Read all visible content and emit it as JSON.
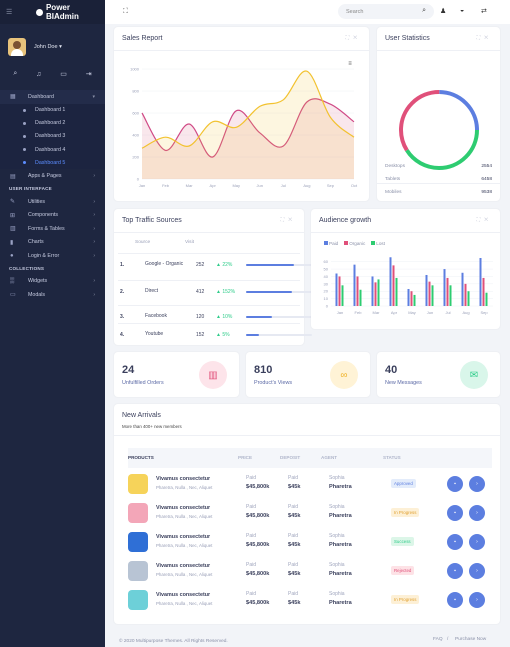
{
  "brand": {
    "name": "Power BIAdmin"
  },
  "user": {
    "name": "John Doe"
  },
  "sidebar": {
    "dashboard": "Dashboard",
    "sub": [
      "Dashboard 1",
      "Dashboard 2",
      "Dashboard 3",
      "Dashboard 4",
      "Dashboard 5"
    ],
    "apps": "Apps & Pages",
    "section_ui": "USER INTERFACE",
    "ui_items": [
      "Utilities",
      "Components",
      "Forms & Tables",
      "Charts",
      "Login & Error"
    ],
    "section_collections": "COLLECTIONS",
    "collection_items": [
      "Widgets",
      "Modals"
    ]
  },
  "search": {
    "placeholder": "Search"
  },
  "sales": {
    "title": "Sales Report",
    "yticks": [
      "1000",
      "800",
      "600",
      "400",
      "200",
      "0"
    ],
    "months": [
      "Jan",
      "Feb",
      "Mar",
      "Apr",
      "May",
      "Jun",
      "Jul",
      "Aug",
      "Sep",
      "Oct"
    ]
  },
  "user_stats": {
    "title": "User Statistics",
    "rows": [
      {
        "k": "Desktops",
        "v": "2554"
      },
      {
        "k": "Tablets",
        "v": "6458"
      },
      {
        "k": "Mobiles",
        "v": "9538"
      }
    ],
    "colors": {
      "desktops": "#5c7ee0",
      "tablets": "#2ecc71",
      "mobiles": "#e0507a"
    },
    "shares": [
      0.25,
      0.41,
      0.34
    ]
  },
  "traffic": {
    "title": "Top Traffic Sources",
    "col_source": "Source",
    "col_visit": "Visit",
    "rows": [
      {
        "n": "1.",
        "src": "Google - Organic",
        "v": "252",
        "p": "▲ 22%",
        "f": 0.72
      },
      {
        "n": "2.",
        "src": "Direct",
        "v": "412",
        "p": "▲ 152%",
        "f": 0.7
      },
      {
        "n": "3.",
        "src": "Facebook",
        "v": "120",
        "p": "▲ 10%",
        "f": 0.4
      },
      {
        "n": "4.",
        "src": "Youtube",
        "v": "152",
        "p": "▲ 5%",
        "f": 0.2
      }
    ]
  },
  "audience": {
    "title": "Audience growth",
    "legend": [
      "Paid",
      "Organic",
      "Lost"
    ]
  },
  "chart_data": [
    {
      "type": "area",
      "categories": [
        "Jan",
        "Feb",
        "Mar",
        "Apr",
        "May",
        "Jun",
        "Jul",
        "Aug",
        "Sep",
        "Oct"
      ],
      "series": [
        {
          "values": [
            600,
            260,
            500,
            200,
            620,
            420,
            300,
            700,
            680,
            520
          ]
        },
        {
          "values": [
            280,
            380,
            300,
            520,
            470,
            660,
            720,
            980,
            560,
            380
          ]
        }
      ],
      "title": "Sales Report",
      "ylim": [
        0,
        1000
      ]
    },
    {
      "type": "bar",
      "categories": [
        "Jan",
        "Feb",
        "Mar",
        "Apr",
        "May",
        "Jun",
        "Jul",
        "Aug",
        "Sep"
      ],
      "series": [
        {
          "name": "Paid",
          "values": [
            44,
            56,
            40,
            66,
            23,
            42,
            50,
            45,
            65
          ]
        },
        {
          "name": "Organic",
          "values": [
            40,
            40,
            32,
            55,
            20,
            33,
            38,
            30,
            38
          ]
        },
        {
          "name": "Lost",
          "values": [
            28,
            22,
            36,
            38,
            15,
            28,
            28,
            20,
            18
          ]
        }
      ],
      "title": "Audience growth",
      "yticks": [
        "60",
        "50",
        "40",
        "30",
        "20",
        "10",
        "0"
      ],
      "ylim": [
        0,
        65
      ]
    }
  ],
  "stats": [
    {
      "num": "24",
      "label": "Unfulfilled Orders"
    },
    {
      "num": "810",
      "label": "Product's Views"
    },
    {
      "num": "40",
      "label": "New Messages"
    }
  ],
  "arrivals": {
    "title": "New Arrivals",
    "subtitle": "More than 400+ new members",
    "headers": [
      "PRODUCTS",
      "PRICE",
      "DEPOSIT",
      "AGENT",
      "STATUS"
    ],
    "rows": [
      {
        "name": "Vivamus consectetur",
        "desc": "Pharetra, Nulla , Nec, Aliquet",
        "paid": "Paid",
        "price": "$45,800k",
        "paid2": "Paid",
        "deposit": "$45k",
        "agent": "Sophia",
        "agent2": "Pharetra",
        "status": "Approved"
      },
      {
        "name": "Vivamus consectetur",
        "desc": "Pharetra, Nulla , Nec, Aliquet",
        "paid": "Paid",
        "price": "$45,800k",
        "paid2": "Paid",
        "deposit": "$45k",
        "agent": "Sophia",
        "agent2": "Pharetra",
        "status": "In Progress"
      },
      {
        "name": "Vivamus consectetur",
        "desc": "Pharetra, Nulla , Nec, Aliquet",
        "paid": "Paid",
        "price": "$45,800k",
        "paid2": "Paid",
        "deposit": "$45k",
        "agent": "Sophia",
        "agent2": "Pharetra",
        "status": "Success"
      },
      {
        "name": "Vivamus consectetur",
        "desc": "Pharetra, Nulla , Nec, Aliquet",
        "paid": "Paid",
        "price": "$45,800k",
        "paid2": "Paid",
        "deposit": "$45k",
        "agent": "Sophia",
        "agent2": "Pharetra",
        "status": "Rejected"
      },
      {
        "name": "Vivamus consectetur",
        "desc": "Pharetra, Nulla , Nec, Aliquet",
        "paid": "Paid",
        "price": "$45,800k",
        "paid2": "Paid",
        "deposit": "$45k",
        "agent": "Sophia",
        "agent2": "Pharetra",
        "status": "In Progress"
      }
    ]
  },
  "footer": {
    "copy": "© 2020 Multipurpose Themes. All Rights Reserved.",
    "faq": "FAQ",
    "sep": "/",
    "purchase": "Purchase Now"
  }
}
